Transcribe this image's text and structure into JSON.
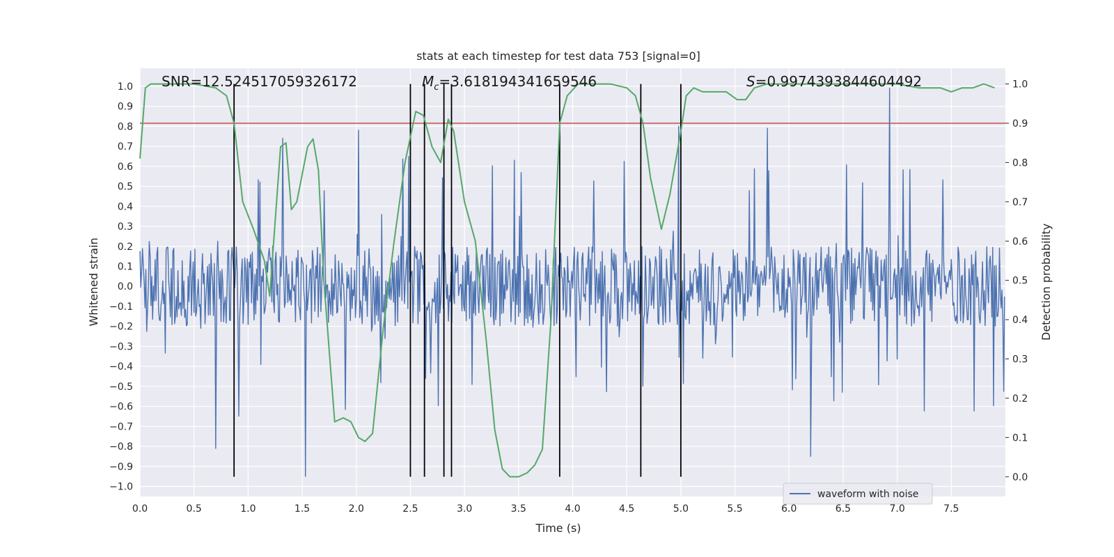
{
  "chart_data": {
    "type": "line",
    "title": "stats at each timestep for test data 753 [signal=0]",
    "xlabel": "Time (s)",
    "ylabel_left": "Whitened strain",
    "ylabel_right": "Detection probability",
    "xlim": [
      0.0,
      8.0
    ],
    "ylim_left": [
      -1.05,
      1.09
    ],
    "ylim_right": [
      -0.05,
      1.04
    ],
    "x_ticks": [
      "0.0",
      "0.5",
      "1.0",
      "1.5",
      "2.0",
      "2.5",
      "3.0",
      "3.5",
      "4.0",
      "4.5",
      "5.0",
      "5.5",
      "6.0",
      "6.5",
      "7.0",
      "7.5"
    ],
    "x_tick_values": [
      0.0,
      0.5,
      1.0,
      1.5,
      2.0,
      2.5,
      3.0,
      3.5,
      4.0,
      4.5,
      5.0,
      5.5,
      6.0,
      6.5,
      7.0,
      7.5
    ],
    "left_ticks": [
      "−1.0",
      "−0.9",
      "−0.8",
      "−0.7",
      "−0.6",
      "−0.5",
      "−0.4",
      "−0.3",
      "−0.2",
      "−0.1",
      "0.0",
      "0.1",
      "0.2",
      "0.3",
      "0.4",
      "0.5",
      "0.6",
      "0.7",
      "0.8",
      "0.9",
      "1.0"
    ],
    "left_tick_values": [
      -1.0,
      -0.9,
      -0.8,
      -0.7,
      -0.6,
      -0.5,
      -0.4,
      -0.3,
      -0.2,
      -0.1,
      0.0,
      0.1,
      0.2,
      0.3,
      0.4,
      0.5,
      0.6,
      0.7,
      0.8,
      0.9,
      1.0
    ],
    "right_ticks": [
      "0.0",
      "0.1",
      "0.2",
      "0.3",
      "0.4",
      "0.5",
      "0.6",
      "0.7",
      "0.8",
      "0.9",
      "1.0"
    ],
    "right_tick_values": [
      0.0,
      0.1,
      0.2,
      0.3,
      0.4,
      0.5,
      0.6,
      0.7,
      0.8,
      0.9,
      1.0
    ],
    "threshold": 0.9,
    "crossings": [
      0.87,
      2.5,
      2.63,
      2.81,
      2.88,
      3.88,
      4.63,
      5.0
    ],
    "stats": {
      "snr": "SNR=12.524517059326172",
      "mc_symbol": "M",
      "mc_sub": "c",
      "mc_value": "=3.618194341659546",
      "s_symbol": "S",
      "s_value": "=0.9974393844604492"
    },
    "legend": "waveform with noise",
    "waveform": {
      "name": "waveform with noise",
      "sample_rate_hz": 128,
      "duration_s": 8.0,
      "core_amplitude": 0.2,
      "peak_max": 0.99,
      "peak_min": -0.95,
      "notable_peaks": [
        {
          "x": 6.93,
          "y": 0.99
        },
        {
          "x": 1.53,
          "y": -0.95
        },
        {
          "x": 6.2,
          "y": -0.85
        },
        {
          "x": 0.7,
          "y": -0.81
        },
        {
          "x": 1.32,
          "y": 0.74
        },
        {
          "x": 5.8,
          "y": 0.79
        },
        {
          "x": 2.02,
          "y": 0.78
        },
        {
          "x": 4.98,
          "y": 0.8
        }
      ]
    },
    "probability": {
      "name": "Detection probability",
      "x": [
        0.0,
        0.05,
        0.1,
        0.2,
        0.3,
        0.5,
        0.7,
        0.8,
        0.87,
        0.95,
        1.05,
        1.15,
        1.2,
        1.3,
        1.35,
        1.4,
        1.45,
        1.55,
        1.6,
        1.65,
        1.7,
        1.8,
        1.88,
        1.95,
        2.02,
        2.08,
        2.15,
        2.25,
        2.35,
        2.45,
        2.55,
        2.62,
        2.7,
        2.78,
        2.85,
        2.9,
        3.0,
        3.1,
        3.2,
        3.28,
        3.35,
        3.42,
        3.5,
        3.58,
        3.65,
        3.72,
        3.8,
        3.88,
        3.95,
        4.05,
        4.2,
        4.35,
        4.5,
        4.58,
        4.65,
        4.72,
        4.82,
        4.9,
        5.0,
        5.05,
        5.12,
        5.2,
        5.3,
        5.42,
        5.52,
        5.6,
        5.68,
        5.8,
        6.0,
        6.5,
        7.0,
        7.2,
        7.4,
        7.5,
        7.6,
        7.7,
        7.8,
        7.9
      ],
      "y": [
        0.81,
        0.99,
        1.0,
        1.0,
        1.0,
        1.0,
        0.99,
        0.97,
        0.9,
        0.7,
        0.63,
        0.55,
        0.46,
        0.84,
        0.85,
        0.68,
        0.7,
        0.84,
        0.86,
        0.78,
        0.5,
        0.14,
        0.15,
        0.14,
        0.1,
        0.09,
        0.11,
        0.38,
        0.6,
        0.8,
        0.93,
        0.92,
        0.84,
        0.8,
        0.91,
        0.88,
        0.7,
        0.6,
        0.35,
        0.12,
        0.02,
        0.0,
        0.0,
        0.01,
        0.03,
        0.07,
        0.4,
        0.9,
        0.97,
        1.0,
        1.0,
        1.0,
        0.99,
        0.97,
        0.9,
        0.76,
        0.63,
        0.72,
        0.88,
        0.97,
        0.99,
        0.98,
        0.98,
        0.98,
        0.96,
        0.96,
        0.99,
        1.0,
        1.0,
        1.0,
        1.0,
        0.99,
        0.99,
        0.98,
        0.99,
        0.99,
        1.0,
        0.99
      ]
    }
  },
  "colors": {
    "panel_bg": "#EAEAF2",
    "grid": "#FFFFFF",
    "waveform": "#4C72B0",
    "probability": "#55A868",
    "threshold": "#C44E52",
    "crossing": "#000000",
    "text": "#262626"
  }
}
